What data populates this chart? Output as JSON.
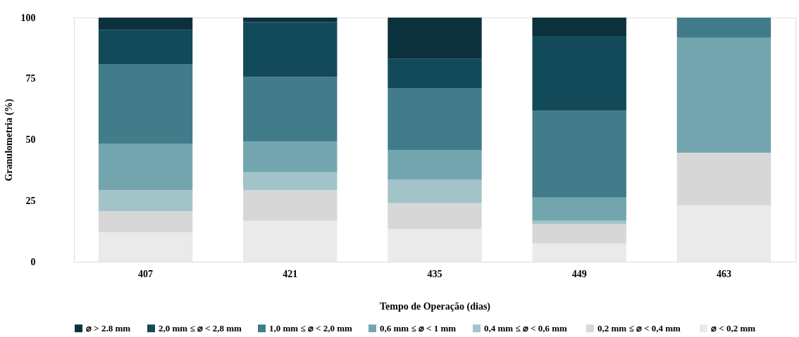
{
  "chart_data": {
    "type": "bar",
    "stacked": true,
    "xlabel": "Tempo de Operação (dias)",
    "ylabel": "Granulometria (%)",
    "categories": [
      "407",
      "421",
      "435",
      "449",
      "463"
    ],
    "ylim": [
      0,
      100
    ],
    "yticks": [
      0,
      25,
      50,
      75,
      100
    ],
    "legend": "bottom",
    "series": [
      {
        "name": "⌀ < 0,2 mm",
        "color": "#eaeaea",
        "values": [
          12,
          16.8,
          13.4,
          7.5,
          23.1
        ]
      },
      {
        "name": "0,2 mm ≤ ⌀  < 0,4 mm",
        "color": "#d7d7d7",
        "values": [
          8.7,
          12.5,
          10.6,
          7.9,
          21.6
        ]
      },
      {
        "name": "0,4 mm ≤ ⌀  < 0,6 mm",
        "color": "#a2c4c8",
        "values": [
          8.6,
          7.4,
          9.6,
          1.4,
          0
        ]
      },
      {
        "name": "0,6 mm ≤ ⌀ < 1 mm",
        "color": "#73a5af",
        "values": [
          19,
          12.5,
          12.2,
          9.5,
          47.0
        ]
      },
      {
        "name": "1,0 mm ≤ ⌀ < 2,0 mm",
        "color": "#427b8a",
        "values": [
          32.7,
          26.5,
          25.4,
          35.5,
          8.3
        ]
      },
      {
        "name": "2,0 mm ≤ ⌀ < 2,8 mm",
        "color": "#124a5a",
        "values": [
          13.9,
          22.4,
          11.9,
          30.7,
          0
        ]
      },
      {
        "name": "⌀ > 2.8 mm",
        "color": "#0b323c",
        "values": [
          5.1,
          1.9,
          16.9,
          7.5,
          0
        ]
      }
    ]
  }
}
